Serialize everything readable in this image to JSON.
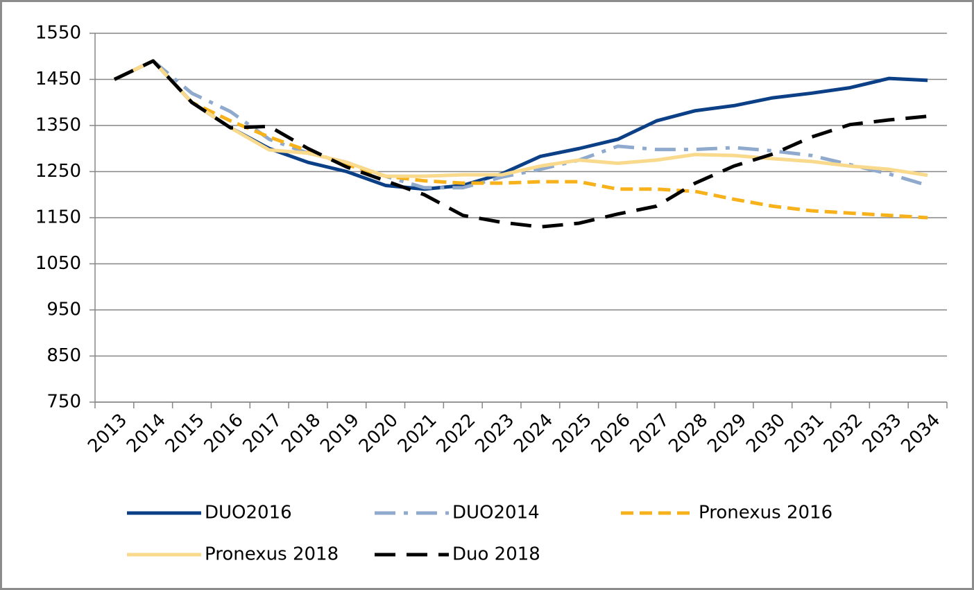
{
  "chart_data": {
    "type": "line",
    "categories": [
      "2013",
      "2014",
      "2015",
      "2016",
      "2017",
      "2018",
      "2019",
      "2020",
      "2021",
      "2022",
      "2023",
      "2024",
      "2025",
      "2026",
      "2027",
      "2028",
      "2029",
      "2030",
      "2031",
      "2032",
      "2033",
      "2034"
    ],
    "series": [
      {
        "name": "DUO2016",
        "color": "#0b3f86",
        "dash": "solid",
        "values": [
          1450,
          1490,
          1400,
          1345,
          1300,
          1270,
          1250,
          1220,
          1212,
          1220,
          1245,
          1283,
          1300,
          1320,
          1360,
          1382,
          1393,
          1410,
          1420,
          1432,
          1452,
          1448
        ]
      },
      {
        "name": "DUO2014",
        "color": "#8faacd",
        "dash": "dashdot",
        "values": [
          1450,
          1490,
          1420,
          1380,
          1320,
          1290,
          1270,
          1240,
          1215,
          1215,
          1238,
          1255,
          1275,
          1305,
          1298,
          1298,
          1302,
          1295,
          1285,
          1265,
          1245,
          1220
        ]
      },
      {
        "name": "Pronexus 2016",
        "color": "#f7b21b",
        "dash": "dashed",
        "values": [
          1450,
          1490,
          1400,
          1360,
          1325,
          1295,
          1265,
          1240,
          1230,
          1225,
          1225,
          1228,
          1228,
          1212,
          1212,
          1207,
          1190,
          1175,
          1165,
          1160,
          1155,
          1150
        ]
      },
      {
        "name": "Pronexus 2018",
        "color": "#f9d98c",
        "dash": "solid",
        "values": [
          1450,
          1490,
          1400,
          1345,
          1297,
          1290,
          1270,
          1240,
          1240,
          1243,
          1243,
          1262,
          1275,
          1268,
          1275,
          1287,
          1285,
          1278,
          1272,
          1262,
          1255,
          1242
        ]
      },
      {
        "name": "Duo 2018",
        "color": "#000000",
        "dash": "longdash",
        "values": [
          1450,
          1490,
          1400,
          1345,
          1348,
          1300,
          1260,
          1230,
          1200,
          1155,
          1140,
          1130,
          1138,
          1158,
          1175,
          1225,
          1262,
          1288,
          1325,
          1352,
          1362,
          1370
        ]
      }
    ],
    "ylim": [
      750,
      1550
    ],
    "yticks": [
      750,
      850,
      950,
      1050,
      1150,
      1250,
      1350,
      1450,
      1550
    ],
    "grid": true,
    "legend": "bottom"
  }
}
